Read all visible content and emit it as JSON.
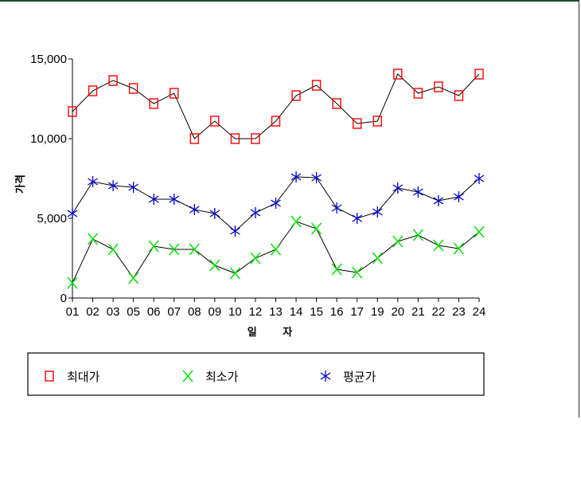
{
  "chart_data": {
    "type": "line",
    "xlabel": "일 자",
    "ylabel": "가격",
    "ylim": [
      0,
      15000
    ],
    "yticks": [
      0,
      5000,
      10000,
      15000
    ],
    "ytick_labels": [
      "0",
      "5,000",
      "10,000",
      "15,000"
    ],
    "categories": [
      "01",
      "02",
      "03",
      "05",
      "06",
      "07",
      "08",
      "09",
      "10",
      "12",
      "13",
      "14",
      "15",
      "16",
      "17",
      "19",
      "20",
      "21",
      "22",
      "23",
      "24"
    ],
    "grid": false,
    "legend_position": "bottom",
    "series": [
      {
        "name": "최대가",
        "marker": "square",
        "color": "#ff0000",
        "values": [
          11700,
          13000,
          13650,
          13150,
          12200,
          12850,
          10000,
          11100,
          10000,
          10000,
          11100,
          12700,
          13350,
          12200,
          10950,
          11100,
          14050,
          12850,
          13250,
          12700,
          14050
        ]
      },
      {
        "name": "최소가",
        "marker": "x",
        "color": "#00e000",
        "values": [
          950,
          3700,
          3050,
          1250,
          3250,
          3050,
          3050,
          2050,
          1550,
          2500,
          3050,
          4800,
          4350,
          1800,
          1600,
          2500,
          3550,
          3950,
          3300,
          3100,
          4150
        ]
      },
      {
        "name": "평균가",
        "marker": "asterisk",
        "color": "#0000cc",
        "values": [
          5300,
          7300,
          7050,
          6950,
          6200,
          6200,
          5550,
          5300,
          4200,
          5350,
          5950,
          7600,
          7550,
          5650,
          5000,
          5400,
          6900,
          6650,
          6100,
          6350,
          7500
        ]
      }
    ]
  }
}
